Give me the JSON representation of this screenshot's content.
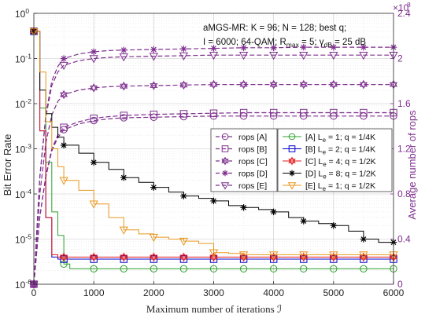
{
  "chart_data": {
    "type": "line",
    "xlabel": "Maximum number of iterations ℐ",
    "ylabel_left": "Bit Error Rate",
    "ylabel_right": "Average number of rops",
    "xlim": [
      0,
      6000
    ],
    "ylim_left": [
      1e-06,
      1
    ],
    "ylim_right": [
      0,
      240000000
    ],
    "y_left_scale": "log",
    "grid": true,
    "x_ticks": [
      "0",
      "1000",
      "2000",
      "3000",
      "4000",
      "5000",
      "6000"
    ],
    "y_left_ticks": [
      "10",
      "10",
      "10",
      "10",
      "10",
      "10",
      "10"
    ],
    "y_left_tick_exps": [
      "0",
      "-1",
      "-2",
      "-3",
      "-4",
      "-5",
      "-6"
    ],
    "y_right_ticks": [
      "0",
      "0.4",
      "0.8",
      "1.2",
      "1.6",
      "2",
      "2.4"
    ],
    "y_right_multiplier": "×10",
    "y_right_multiplier_exp": "8",
    "annotation": {
      "line1": "aMGS-MR: K = 96; N = 128; best q;",
      "line2_parts": [
        "I = 6000; 64-QAM; R",
        "max",
        " = 5; γ",
        "dB",
        " = 25 dB"
      ]
    },
    "ber_series": [
      {
        "label_parts": [
          "[A] L",
          "e",
          " = 1; q = 1/4K"
        ],
        "color": "#2CA02C",
        "marker": "circle",
        "x": [
          0,
          100,
          200,
          300,
          400,
          500,
          600,
          700,
          800,
          1000,
          1500,
          2000,
          2500,
          3000,
          3500,
          4000,
          4500,
          5000,
          5500,
          6000
        ],
        "y": [
          0.4,
          0.008,
          0.0005,
          4e-05,
          1.2e-05,
          2.8e-06,
          2.2e-06,
          2.2e-06,
          2.2e-06,
          2.2e-06,
          2.2e-06,
          2.2e-06,
          2.2e-06,
          2.2e-06,
          2.2e-06,
          2.2e-06,
          2.2e-06,
          2.2e-06,
          2.2e-06,
          2.2e-06
        ],
        "marker_x": [
          0,
          500,
          1000,
          1500,
          2000,
          2500,
          3000,
          3500,
          4000,
          4500,
          5000,
          5500,
          6000
        ]
      },
      {
        "label_parts": [
          "[B] L",
          "e",
          " = 2; q = 1/4K"
        ],
        "color": "#0000CC",
        "marker": "square",
        "x": [
          0,
          100,
          200,
          300,
          400,
          500,
          1000,
          2000,
          3000,
          4000,
          5000,
          6000
        ],
        "y": [
          0.4,
          0.0025,
          3e-05,
          4e-06,
          3.6e-06,
          3.6e-06,
          3.6e-06,
          3.6e-06,
          3.6e-06,
          3.6e-06,
          3.6e-06,
          3.6e-06
        ],
        "marker_x": [
          0,
          500,
          1000,
          1500,
          2000,
          2500,
          3000,
          3500,
          4000,
          4500,
          5000,
          5500,
          6000
        ]
      },
      {
        "label_parts": [
          "[C] L",
          "e",
          " = 4; q = 1/2K"
        ],
        "color": "#E41A1C",
        "marker": "hexagram",
        "x": [
          0,
          100,
          200,
          300,
          400,
          500,
          1000,
          2000,
          3000,
          4000,
          5000,
          6000
        ],
        "y": [
          0.4,
          0.0025,
          3e-05,
          4.5e-06,
          4e-06,
          4e-06,
          4e-06,
          4e-06,
          4e-06,
          4e-06,
          4e-06,
          4e-06
        ],
        "marker_x": [
          0,
          500,
          1000,
          1500,
          2000,
          2500,
          3000,
          3500,
          4000,
          4500,
          5000,
          5500,
          6000
        ]
      },
      {
        "label_parts": [
          "[D] L",
          "e",
          " = 8; q = 1/2K"
        ],
        "color": "#000000",
        "marker": "asterisk",
        "x": [
          0,
          100,
          200,
          300,
          400,
          500,
          750,
          1000,
          1250,
          1500,
          1750,
          2000,
          2250,
          2500,
          2750,
          3000,
          3250,
          3500,
          3750,
          4000,
          4250,
          4500,
          4750,
          5000,
          5250,
          5500,
          5750,
          6000
        ],
        "y": [
          0.4,
          0.02,
          0.006,
          0.003,
          0.0018,
          0.0012,
          0.0008,
          0.0005,
          0.00035,
          0.00023,
          0.00018,
          0.00014,
          0.00011,
          9e-05,
          8e-05,
          7e-05,
          5.5e-05,
          5e-05,
          4.5e-05,
          4e-05,
          3e-05,
          2.5e-05,
          2.2e-05,
          2e-05,
          1.5e-05,
          1e-05,
          8.5e-06,
          8.5e-06
        ],
        "marker_x": [
          0,
          500,
          1000,
          1500,
          2000,
          2500,
          3000,
          3500,
          4000,
          4500,
          5000,
          5500,
          6000
        ]
      },
      {
        "label_parts": [
          "[E] L",
          "e",
          " = 1; q = 1/2K"
        ],
        "color": "#E8961E",
        "marker": "triangle-down",
        "x": [
          0,
          100,
          200,
          300,
          400,
          500,
          750,
          1000,
          1250,
          1500,
          1750,
          2000,
          2250,
          2500,
          2750,
          3000,
          3250,
          3500,
          4000,
          4500,
          5000,
          5500,
          6000
        ],
        "y": [
          0.4,
          0.05,
          0.004,
          0.001,
          0.0004,
          0.0002,
          0.00012,
          6e-05,
          3e-05,
          1.6e-05,
          1.3e-05,
          1.1e-05,
          1e-05,
          9e-06,
          8e-06,
          5e-06,
          4.8e-06,
          4.5e-06,
          4.5e-06,
          4.5e-06,
          4.5e-06,
          4.5e-06,
          4.5e-06
        ],
        "marker_x": [
          0,
          500,
          1000,
          1500,
          2000,
          2500,
          3000,
          3500,
          4000,
          4500,
          5000,
          5500,
          6000
        ]
      }
    ],
    "rops_series": [
      {
        "label": "rops [A]",
        "marker": "circle",
        "color": "#7E2F8E",
        "x": [
          0,
          100,
          200,
          300,
          400,
          500,
          750,
          1000,
          1250,
          1500,
          2000,
          2500,
          3000,
          3500,
          4000,
          4500,
          5000,
          5500,
          6000
        ],
        "y": [
          0,
          60000000,
          95000000,
          118000000,
          130000000,
          137000000,
          142000000,
          145000000,
          146500000,
          147500000,
          148000000,
          148500000,
          149000000,
          149000000,
          149000000,
          149000000,
          149000000,
          149000000,
          149000000
        ]
      },
      {
        "label": "rops [B]",
        "marker": "square",
        "color": "#7E2F8E",
        "x": [
          0,
          100,
          200,
          300,
          400,
          500,
          750,
          1000,
          1250,
          1500,
          2000,
          2500,
          3000,
          3500,
          4000,
          4500,
          5000,
          5500,
          6000
        ],
        "y": [
          0,
          60000000,
          96000000,
          120000000,
          132000000,
          139000000,
          144000000,
          147000000,
          148500000,
          149500000,
          150500000,
          151000000,
          151500000,
          152000000,
          152000000,
          152000000,
          152000000,
          152000000,
          152000000
        ]
      },
      {
        "label": "rops [C]",
        "marker": "hexagram",
        "color": "#7E2F8E",
        "x": [
          0,
          100,
          200,
          300,
          400,
          500,
          750,
          1000,
          1250,
          1500,
          2000,
          2500,
          3000,
          3500,
          4000,
          4500,
          5000,
          5500,
          6000
        ],
        "y": [
          0,
          80000000,
          125000000,
          150000000,
          162000000,
          168000000,
          172000000,
          174000000,
          175000000,
          175500000,
          176000000,
          176500000,
          177000000,
          177000000,
          177000000,
          177000000,
          177000000,
          177000000,
          177000000
        ]
      },
      {
        "label": "rops [D]",
        "marker": "asterisk",
        "color": "#7E2F8E",
        "x": [
          0,
          100,
          200,
          300,
          400,
          500,
          750,
          1000,
          1250,
          1500,
          2000,
          2500,
          3000,
          3500,
          4000,
          4500,
          5000,
          5500,
          6000
        ],
        "y": [
          0,
          95000000,
          150000000,
          180000000,
          193000000,
          200000000,
          204000000,
          206000000,
          207000000,
          207500000,
          208000000,
          208500000,
          209000000,
          209500000,
          209500000,
          210000000,
          210000000,
          210000000,
          210000000
        ]
      },
      {
        "label": "rops [E]",
        "marker": "triangle-down",
        "color": "#7E2F8E",
        "x": [
          0,
          100,
          200,
          300,
          400,
          500,
          750,
          1000,
          1250,
          1500,
          2000,
          2500,
          3000,
          3500,
          4000,
          4500,
          5000,
          5500,
          6000
        ],
        "y": [
          0,
          95000000,
          148000000,
          176000000,
          188000000,
          194000000,
          198000000,
          200000000,
          201000000,
          201500000,
          202000000,
          202500000,
          203000000,
          203000000,
          203000000,
          203000000,
          203000000,
          203000000,
          203000000
        ]
      }
    ]
  }
}
